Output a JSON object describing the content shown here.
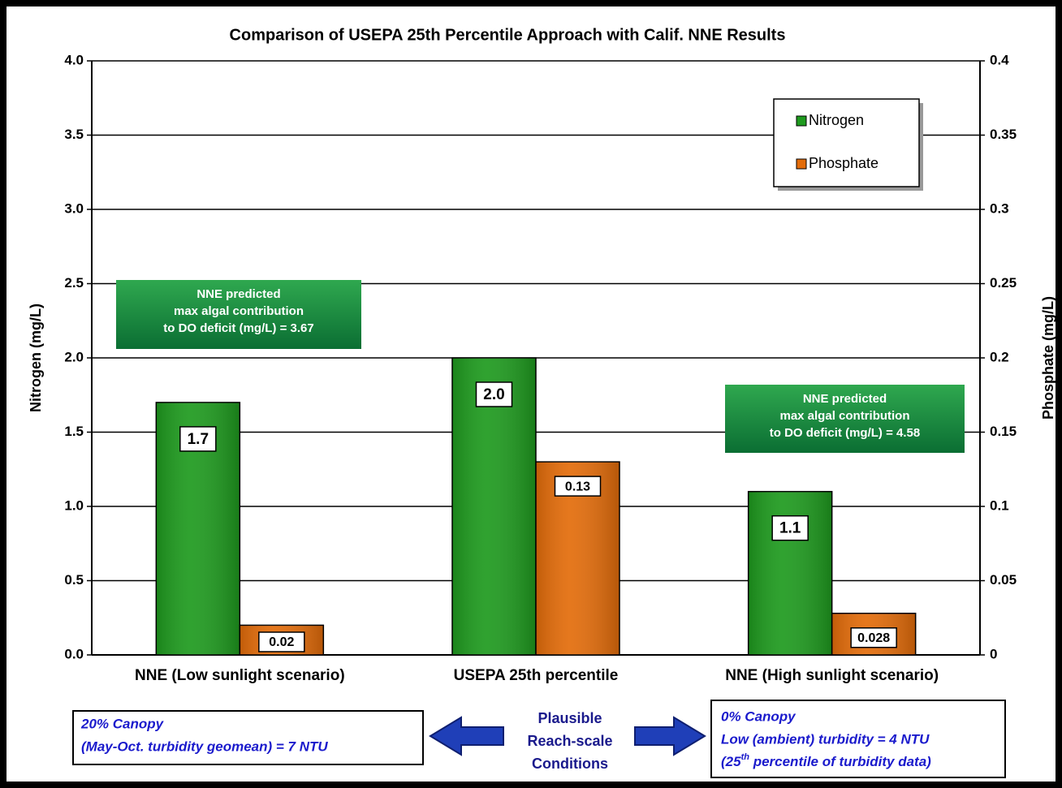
{
  "chart_data": {
    "type": "bar",
    "title": "Comparison of USEPA 25th Percentile Approach with Calif. NNE Results",
    "categories": [
      "NNE (Low sunlight scenario)",
      "USEPA 25th percentile",
      "NNE (High sunlight scenario)"
    ],
    "series": [
      {
        "name": "Nitrogen",
        "color": "#1e9a1e",
        "values": [
          1.7,
          2.0,
          1.1
        ],
        "value_labels": [
          "1.7",
          "2.0",
          "1.1"
        ]
      },
      {
        "name": "Phosphate",
        "color": "#e36c0a",
        "values": [
          0.02,
          0.13,
          0.028
        ],
        "axis": "y2"
      }
    ],
    "y_label": "Nitrogen (mg/L)",
    "y2_label": "Phosphate (mg/L)",
    "ylim": [
      0,
      4
    ],
    "yticks": [
      {
        "value": 0,
        "label": "0.0"
      },
      0.5,
      {
        "value": 1,
        "label": "1.0"
      },
      1.5,
      {
        "value": 2,
        "label": "2.0"
      },
      2.5,
      {
        "value": 3,
        "label": "3.0"
      },
      3.5,
      {
        "value": 4,
        "label": "4.0"
      }
    ],
    "y2lim": [
      0,
      0.4
    ],
    "y2ticks": [
      0,
      0.05,
      0.1,
      0.15,
      0.2,
      0.25,
      0.3,
      0.35,
      0.4
    ],
    "grid": true,
    "legend": "top-right",
    "annotations": {
      "low_box": [
        "NNE predicted",
        "max algal contribution",
        "to DO deficit (mg/L) = 3.67"
      ],
      "high_box": [
        "NNE predicted",
        "max algal contribution",
        "to DO deficit (mg/L) = 4.58"
      ],
      "middle": [
        "Plausible",
        "Reach-scale",
        "Conditions"
      ],
      "left_note": [
        "20% Canopy",
        "(May-Oct. turbidity geomean) = 7 NTU"
      ],
      "right_note": [
        "0% Canopy",
        "Low (ambient) turbidity = 4 NTU",
        "(25",
        "th",
        " percentile of turbidity data)"
      ]
    }
  }
}
